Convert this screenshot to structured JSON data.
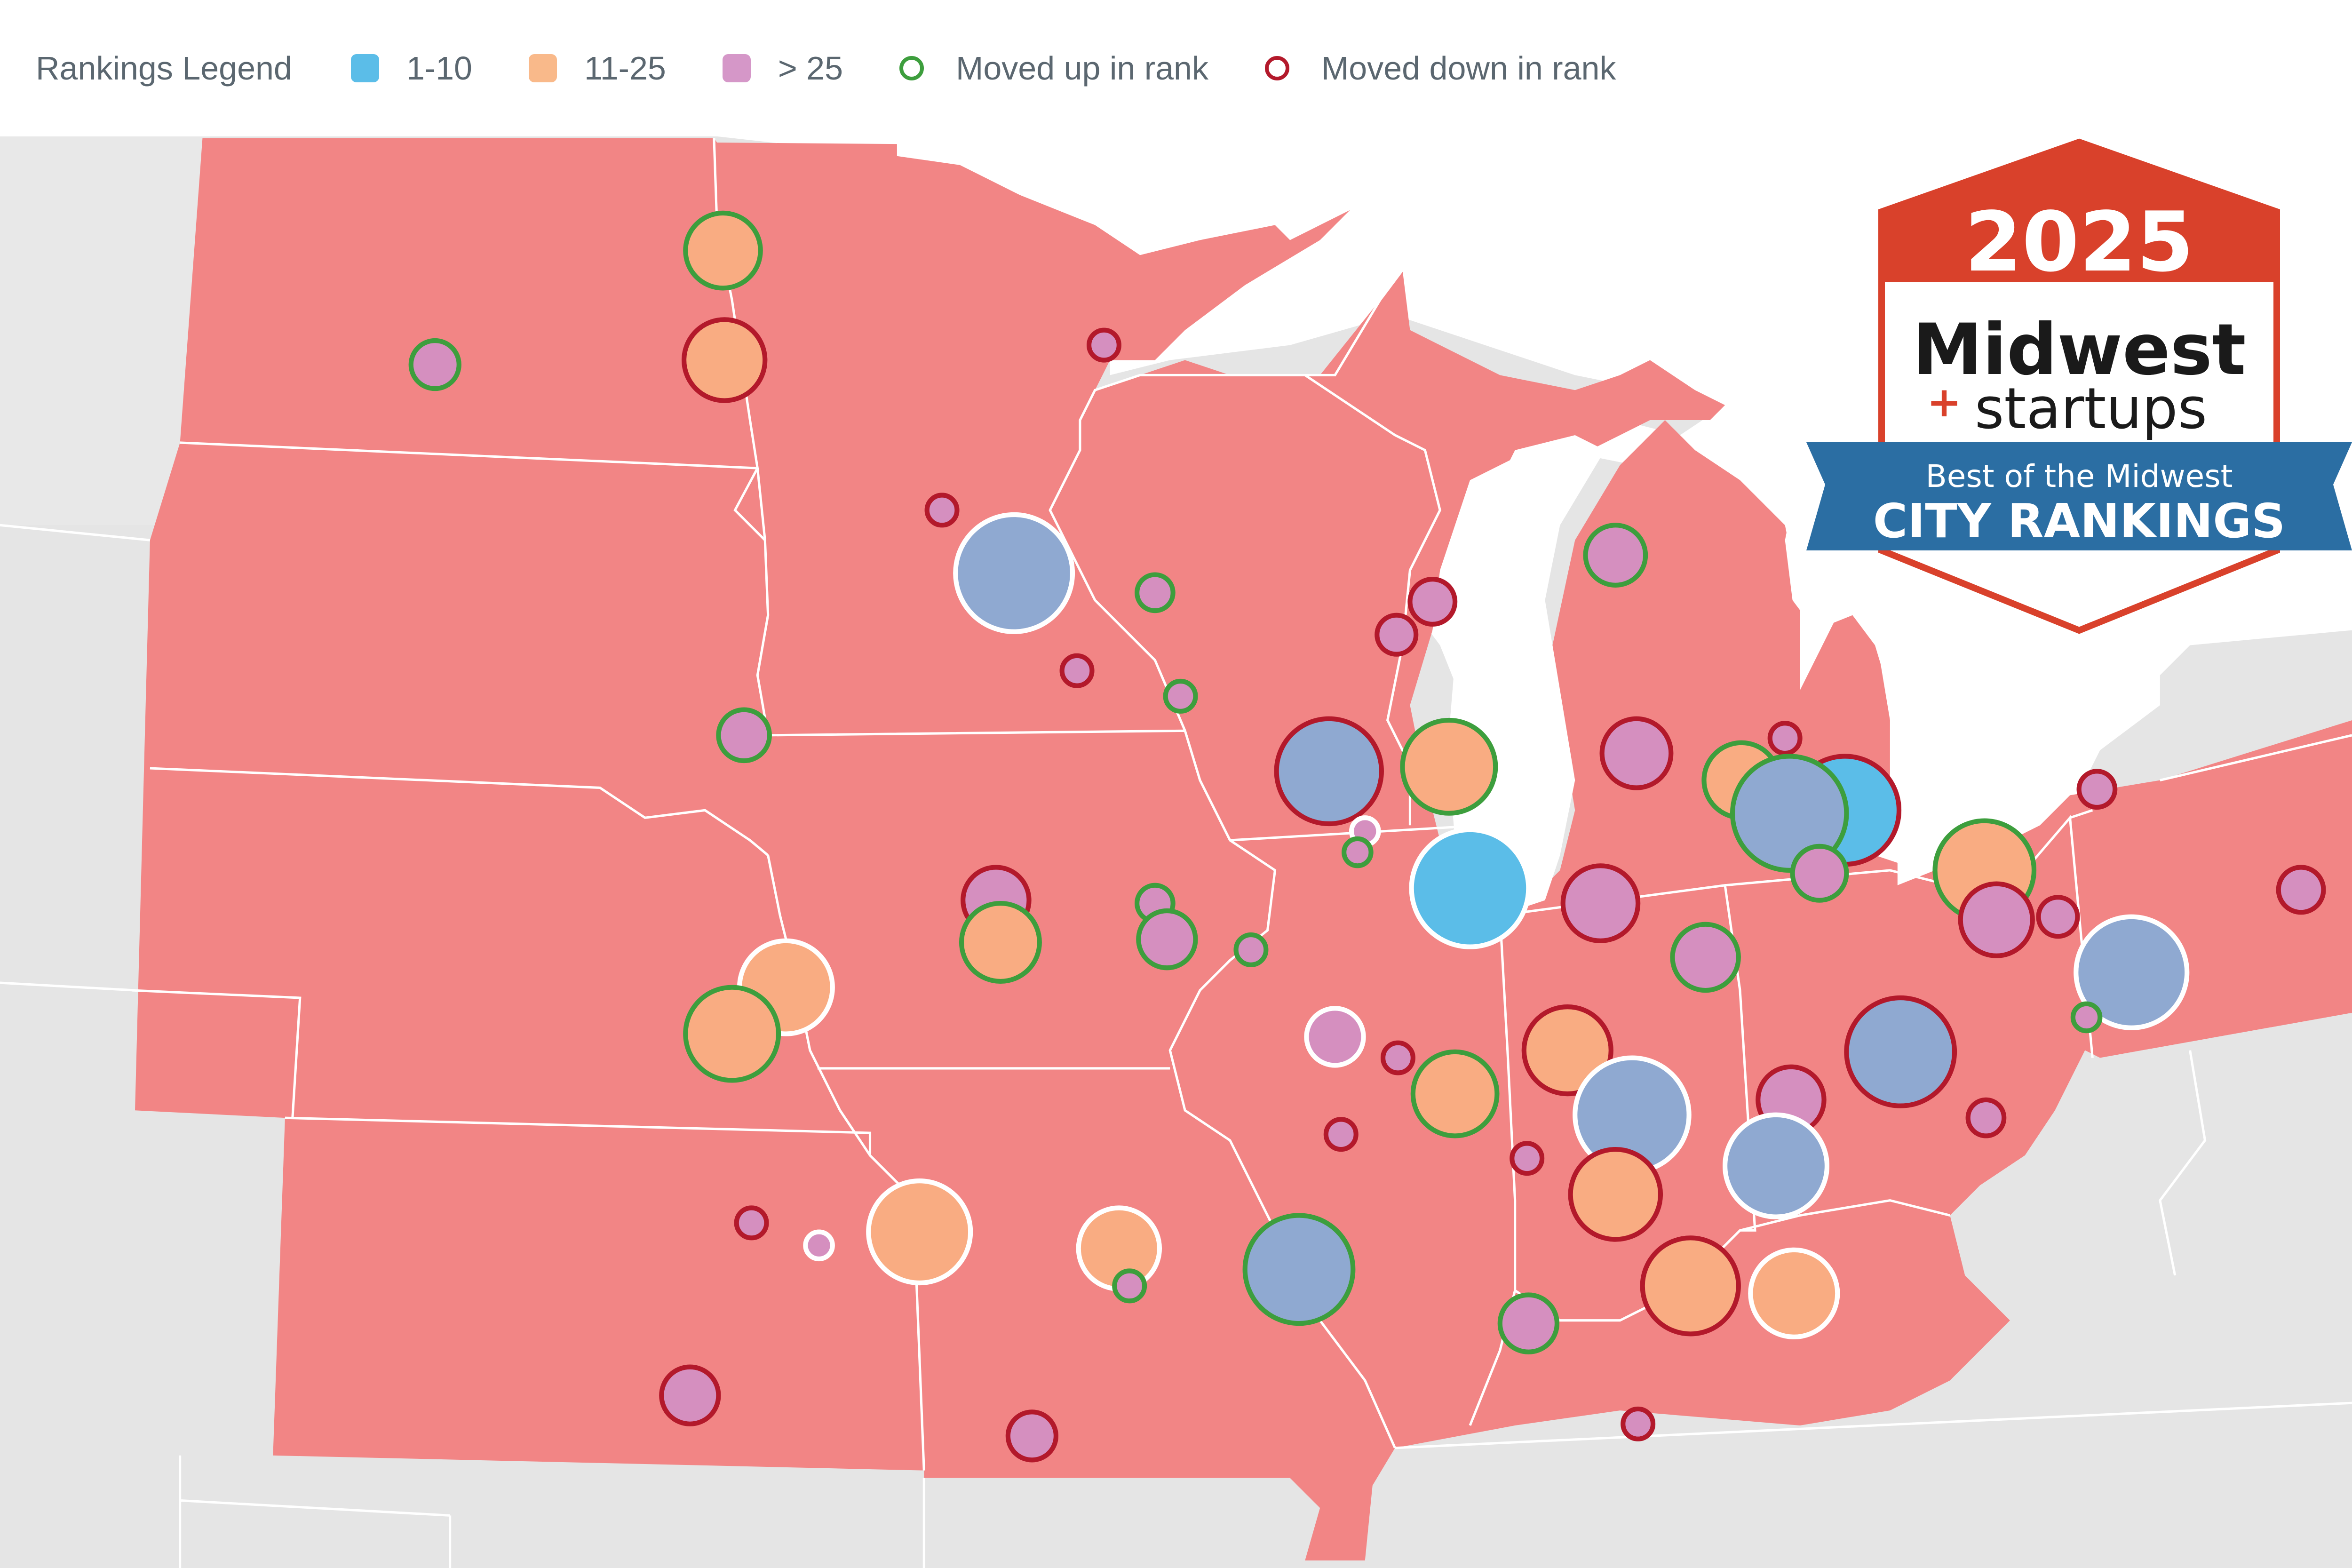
{
  "legend": {
    "title": "Rankings Legend",
    "items": [
      {
        "label": "1-10",
        "kind": "fill",
        "color": "#5bbde8"
      },
      {
        "label": "11-25",
        "kind": "fill",
        "color": "#f9b98a"
      },
      {
        "label": "> 25",
        "kind": "fill",
        "color": "#d597c8"
      },
      {
        "label": "Moved up in rank",
        "kind": "ring",
        "color": "#3d9e3d"
      },
      {
        "label": "Moved down in rank",
        "kind": "ring",
        "color": "#b3192b"
      }
    ]
  },
  "badge": {
    "year": "2025",
    "brand_line1": "Midwest",
    "brand_plus": "+",
    "brand_line2": "startups",
    "ribbon_line1": "Best of the Midwest",
    "ribbon_line2": "CITY RANKINGS"
  },
  "colors": {
    "midwest_fill": "#f28585",
    "neighbor_fill": "#e5e5e5",
    "water": "#ffffff",
    "border": "#ffffff",
    "tier_1_10": "#8fa9d1",
    "tier_11_25": "#f9ac82",
    "tier_over_25": "#d58fbf",
    "moved_up": "#3d9e3d",
    "moved_down": "#b3192b",
    "unchanged": "#ffffff",
    "badge_red": "#d9412b",
    "ribbon_blue": "#2b6ea3"
  }
}
